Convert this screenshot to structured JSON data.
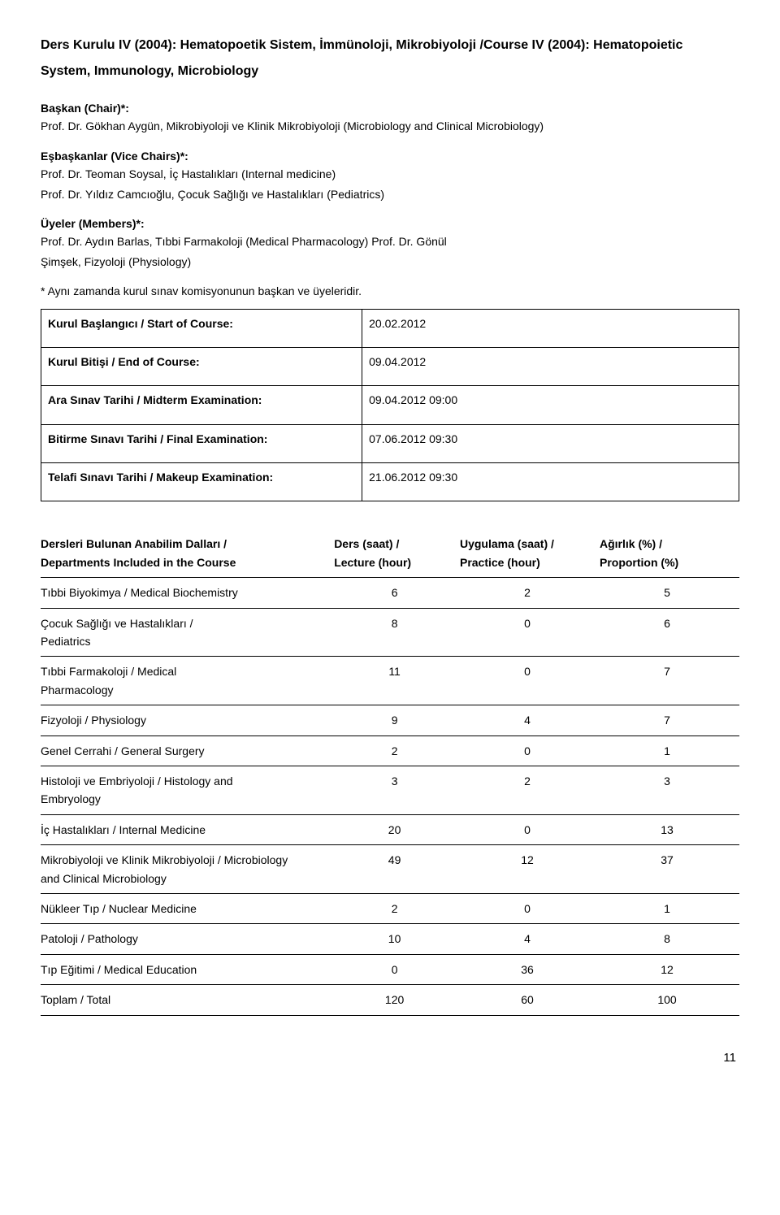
{
  "title_line1": "Ders Kurulu IV (2004): Hematopoetik Sistem, İmmünoloji, Mikrobiyoloji /Course IV (2004): Hematopoietic",
  "title_line2": "System, Immunology, Microbiology",
  "chair": {
    "label": "Başkan (Chair)*:",
    "name": "Prof. Dr. Gökhan Aygün, Mikrobiyoloji ve Klinik Mikrobiyoloji (Microbiology and Clinical Microbiology)"
  },
  "vice_chairs": {
    "label": "Eşbaşkanlar (Vice Chairs)*:",
    "people": [
      "Prof. Dr. Teoman Soysal, İç Hastalıkları (Internal medicine)",
      "Prof. Dr. Yıldız Camcıoğlu, Çocuk Sağlığı ve Hastalıkları (Pediatrics)"
    ]
  },
  "members": {
    "label": "Üyeler (Members)*:",
    "people": [
      "Prof. Dr. Aydın Barlas, Tıbbi Farmakoloji (Medical Pharmacology) Prof. Dr. Gönül",
      "Şimşek, Fizyoloji (Physiology)"
    ]
  },
  "footnote": "* Aynı zamanda kurul sınav komisyonunun başkan ve üyeleridir.",
  "dates": [
    {
      "label": "Kurul Başlangıcı / Start of Course:",
      "value": "20.02.2012"
    },
    {
      "label": "Kurul Bitişi / End of Course:",
      "value": "09.04.2012"
    },
    {
      "label": "Ara Sınav Tarihi / Midterm Examination:",
      "value": "09.04.2012 09:00"
    },
    {
      "label": "Bitirme Sınavı Tarihi / Final Examination:",
      "value": "07.06.2012 09:30"
    },
    {
      "label": "Telafi Sınavı Tarihi / Makeup Examination:",
      "value": "21.06.2012 09:30"
    }
  ],
  "dept_table": {
    "headers": {
      "name_l1": "Dersleri Bulunan Anabilim Dalları /",
      "name_l2": "Departments Included in the Course",
      "lecture_l1": "Ders (saat) /",
      "lecture_l2": "Lecture (hour)",
      "practice_l1": "Uygulama (saat) /",
      "practice_l2": "Practice (hour)",
      "prop_l1": "Ağırlık (%) /",
      "prop_l2": "Proportion (%)"
    },
    "rows": [
      {
        "name": "Tıbbi Biyokimya / Medical Biochemistry",
        "lecture": "6",
        "practice": "2",
        "prop": "5",
        "indent": true
      },
      {
        "name": "Çocuk Sağlığı ve Hastalıkları /\nPediatrics",
        "lecture": "8",
        "practice": "0",
        "prop": "6"
      },
      {
        "name": "Tıbbi Farmakoloji / Medical\nPharmacology",
        "lecture": "11",
        "practice": "0",
        "prop": "7"
      },
      {
        "name": "Fizyoloji / Physiology",
        "lecture": "9",
        "practice": "4",
        "prop": "7"
      },
      {
        "name": "Genel Cerrahi / General Surgery",
        "lecture": "2",
        "practice": "0",
        "prop": "1"
      },
      {
        "name": "Histoloji ve Embriyoloji / Histology and\nEmbryology",
        "lecture": "3",
        "practice": "2",
        "prop": "3"
      },
      {
        "name": "İç Hastalıkları / Internal Medicine",
        "lecture": "20",
        "practice": "0",
        "prop": "13"
      },
      {
        "name": "Mikrobiyoloji ve Klinik Mikrobiyoloji / Microbiology\nand Clinical Microbiology",
        "lecture": "49",
        "practice": "12",
        "prop": "37"
      },
      {
        "name": "Nükleer Tıp / Nuclear Medicine",
        "lecture": "2",
        "practice": "0",
        "prop": "1"
      },
      {
        "name": "Patoloji / Pathology",
        "lecture": "10",
        "practice": "4",
        "prop": "8"
      },
      {
        "name": "Tıp Eğitimi / Medical Education",
        "lecture": "0",
        "practice": "36",
        "prop": "12"
      },
      {
        "name": "Toplam / Total",
        "lecture": "120",
        "practice": "60",
        "prop": "100"
      }
    ]
  },
  "page_number": "11"
}
